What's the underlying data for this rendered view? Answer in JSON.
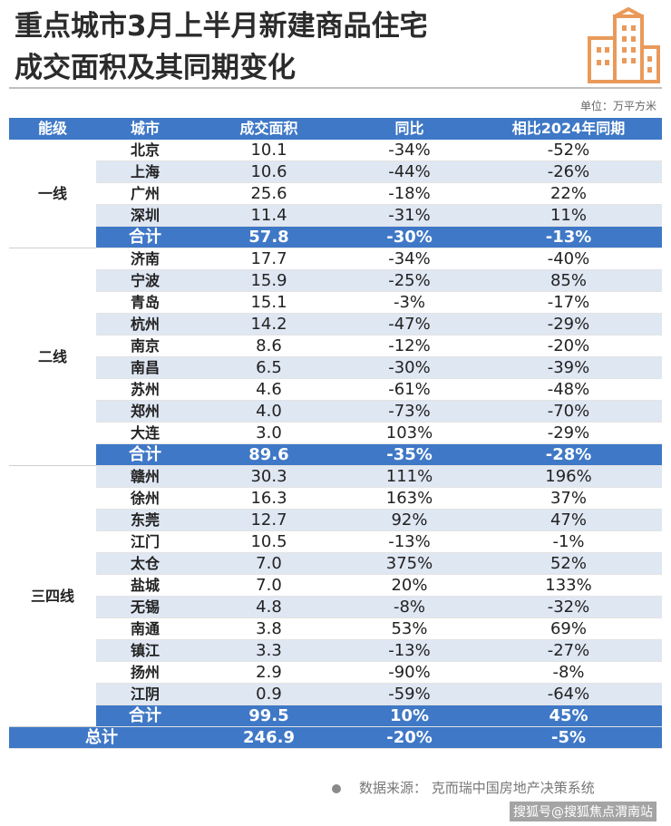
{
  "header": {
    "title_line1": "重点城市3月上半月新建商品住宅",
    "title_line2": "成交面积及其同期变化",
    "unit": "单位：万平方米"
  },
  "table": {
    "columns": [
      "能级",
      "城市",
      "成交面积",
      "同比",
      "相比2024年同期"
    ],
    "groups": [
      {
        "tier": "一线",
        "rows": [
          [
            "北京",
            "10.1",
            "-34%",
            "-52%"
          ],
          [
            "上海",
            "10.6",
            "-44%",
            "-26%"
          ],
          [
            "广州",
            "25.6",
            "-18%",
            "22%"
          ],
          [
            "深圳",
            "11.4",
            "-31%",
            "11%"
          ]
        ],
        "subtotal": [
          "合计",
          "57.8",
          "-30%",
          "-13%"
        ]
      },
      {
        "tier": "二线",
        "rows": [
          [
            "济南",
            "17.7",
            "-34%",
            "-40%"
          ],
          [
            "宁波",
            "15.9",
            "-25%",
            "85%"
          ],
          [
            "青岛",
            "15.1",
            "-3%",
            "-17%"
          ],
          [
            "杭州",
            "14.2",
            "-47%",
            "-29%"
          ],
          [
            "南京",
            "8.6",
            "-12%",
            "-20%"
          ],
          [
            "南昌",
            "6.5",
            "-30%",
            "-39%"
          ],
          [
            "苏州",
            "4.6",
            "-61%",
            "-48%"
          ],
          [
            "郑州",
            "4.0",
            "-73%",
            "-70%"
          ],
          [
            "大连",
            "3.0",
            "103%",
            "-29%"
          ]
        ],
        "subtotal": [
          "合计",
          "89.6",
          "-35%",
          "-28%"
        ]
      },
      {
        "tier": "三四线",
        "rows": [
          [
            "赣州",
            "30.3",
            "111%",
            "196%"
          ],
          [
            "徐州",
            "16.3",
            "163%",
            "37%"
          ],
          [
            "东莞",
            "12.7",
            "92%",
            "47%"
          ],
          [
            "江门",
            "10.5",
            "-13%",
            "-1%"
          ],
          [
            "太仓",
            "7.0",
            "375%",
            "52%"
          ],
          [
            "盐城",
            "7.0",
            "20%",
            "133%"
          ],
          [
            "无锡",
            "4.8",
            "-8%",
            "-32%"
          ],
          [
            "南通",
            "3.8",
            "53%",
            "69%"
          ],
          [
            "镇江",
            "3.3",
            "-13%",
            "-27%"
          ],
          [
            "扬州",
            "2.9",
            "-90%",
            "-8%"
          ],
          [
            "江阴",
            "0.9",
            "-59%",
            "-64%"
          ]
        ],
        "subtotal": [
          "合计",
          "99.5",
          "10%",
          "45%"
        ]
      }
    ],
    "total": [
      "总计",
      "246.9",
      "-20%",
      "-5%"
    ]
  },
  "footer": {
    "source": "数据来源：  克而瑞中国房地产决策系统",
    "credit": "搜狐号@搜狐焦点渭南站"
  },
  "colors": {
    "header_blue": "#3f78c6",
    "stripe": "#dfe7f3",
    "logo_orange": "#e99a5a"
  },
  "icons": [
    "building-logo-icon",
    "bullet-dot-icon"
  ]
}
